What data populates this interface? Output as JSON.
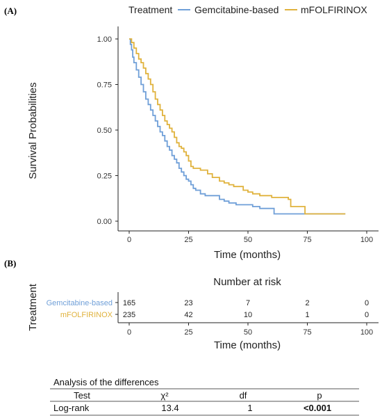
{
  "panel_a_label": "(A)",
  "panel_b_label": "(B)",
  "legend": {
    "title": "Treatment",
    "items": [
      {
        "label": "Gemcitabine-based",
        "color": "#6f9fd8"
      },
      {
        "label": "mFOLFIRINOX",
        "color": "#e0b23c"
      }
    ]
  },
  "chart_data": [
    {
      "type": "line",
      "title": "",
      "xlabel": "Time (months)",
      "ylabel": "Survival Probabilities",
      "xlim": [
        0,
        100
      ],
      "ylim": [
        0,
        1
      ],
      "xticks": [
        "0",
        "25",
        "50",
        "75",
        "100"
      ],
      "yticks": [
        "0.00",
        "0.25",
        "0.50",
        "0.75",
        "1.00"
      ],
      "grid": false,
      "legend_position": "top",
      "series": [
        {
          "name": "Gemcitabine-based",
          "color": "#6f9fd8",
          "x": [
            0,
            0.5,
            1,
            1.5,
            2,
            3,
            4,
            5,
            6,
            7,
            8,
            9,
            10,
            11,
            12,
            13,
            14,
            15,
            16,
            17,
            18,
            19,
            20,
            21,
            22,
            23,
            24,
            25,
            26,
            27,
            28,
            30,
            32,
            35,
            38,
            40,
            42,
            45,
            48,
            50,
            52,
            55,
            58,
            60,
            61,
            65,
            70,
            75,
            80,
            85,
            91
          ],
          "y": [
            1.0,
            0.97,
            0.94,
            0.9,
            0.87,
            0.83,
            0.79,
            0.75,
            0.71,
            0.67,
            0.64,
            0.61,
            0.58,
            0.55,
            0.52,
            0.49,
            0.47,
            0.44,
            0.41,
            0.39,
            0.36,
            0.34,
            0.32,
            0.29,
            0.27,
            0.25,
            0.23,
            0.22,
            0.2,
            0.18,
            0.17,
            0.15,
            0.14,
            0.14,
            0.12,
            0.11,
            0.1,
            0.09,
            0.09,
            0.09,
            0.08,
            0.07,
            0.07,
            0.07,
            0.04,
            0.04,
            0.04,
            0.04,
            0.04,
            0.04,
            0.04
          ]
        },
        {
          "name": "mFOLFIRINOX",
          "color": "#e0b23c",
          "x": [
            0,
            1,
            2,
            3,
            4,
            5,
            6,
            7,
            8,
            9,
            10,
            11,
            12,
            13,
            14,
            15,
            16,
            17,
            18,
            19,
            20,
            21,
            22,
            23,
            24,
            25,
            26,
            27,
            28,
            30,
            32,
            33,
            35,
            38,
            40,
            42,
            44,
            45,
            48,
            50,
            52,
            55,
            58,
            60,
            62,
            65,
            67,
            68,
            70,
            73,
            74,
            75,
            80,
            85,
            91
          ],
          "y": [
            1.0,
            0.98,
            0.95,
            0.92,
            0.89,
            0.87,
            0.84,
            0.81,
            0.78,
            0.75,
            0.71,
            0.67,
            0.64,
            0.61,
            0.58,
            0.55,
            0.53,
            0.51,
            0.49,
            0.46,
            0.43,
            0.41,
            0.4,
            0.38,
            0.36,
            0.33,
            0.3,
            0.29,
            0.29,
            0.28,
            0.28,
            0.26,
            0.24,
            0.22,
            0.21,
            0.2,
            0.19,
            0.19,
            0.17,
            0.16,
            0.15,
            0.14,
            0.14,
            0.13,
            0.13,
            0.13,
            0.12,
            0.08,
            0.08,
            0.08,
            0.04,
            0.04,
            0.04,
            0.04,
            0.04
          ]
        }
      ]
    },
    {
      "type": "table",
      "title": "Number at risk",
      "ylabel": "Treatment",
      "xlabel": "Time (months)",
      "xlim": [
        0,
        100
      ],
      "xticks": [
        "0",
        "25",
        "50",
        "75",
        "100"
      ],
      "columns": [
        0,
        25,
        50,
        75,
        100
      ],
      "rows": [
        {
          "label": "Gemcitabine-based",
          "color": "#6f9fd8",
          "values": [
            "165",
            "23",
            "7",
            "2",
            "0"
          ]
        },
        {
          "label": "mFOLFIRINOX",
          "color": "#e0b23c",
          "values": [
            "235",
            "42",
            "10",
            "1",
            "0"
          ]
        }
      ]
    }
  ],
  "differences_table": {
    "title": "Analysis of the differences",
    "headers": [
      "Test",
      "χ²",
      "df",
      "p"
    ],
    "row": [
      "Log-rank",
      "13.4",
      "1",
      "<0.001"
    ]
  }
}
